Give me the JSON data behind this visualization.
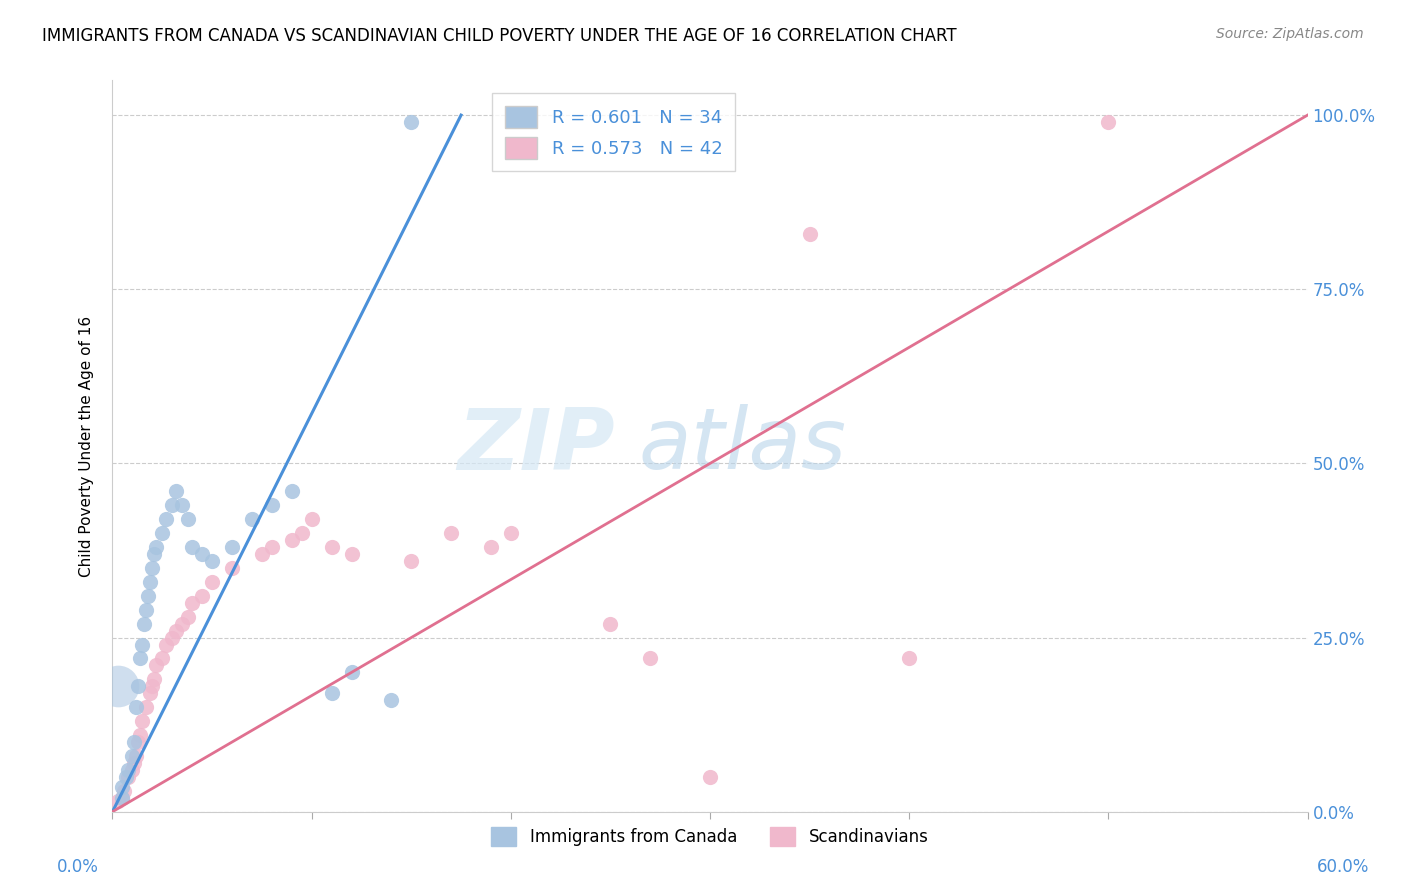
{
  "title": "IMMIGRANTS FROM CANADA VS SCANDINAVIAN CHILD POVERTY UNDER THE AGE OF 16 CORRELATION CHART",
  "source": "Source: ZipAtlas.com",
  "ylabel": "Child Poverty Under the Age of 16",
  "legend_label1": "Immigrants from Canada",
  "legend_label2": "Scandinavians",
  "r1": 0.601,
  "n1": 34,
  "r2": 0.573,
  "n2": 42,
  "color1": "#a8c4e0",
  "color2": "#f0b8cc",
  "line_color1": "#4a90d9",
  "line_color2": "#e07090",
  "watermark_zip": "ZIP",
  "watermark_atlas": "atlas",
  "blue_scatter_x": [
    0.5,
    0.5,
    0.7,
    0.8,
    1.0,
    1.1,
    1.2,
    1.3,
    1.4,
    1.5,
    1.6,
    1.7,
    1.8,
    1.9,
    2.0,
    2.1,
    2.2,
    2.5,
    2.7,
    3.0,
    3.2,
    3.5,
    3.8,
    4.0,
    4.5,
    5.0,
    6.0,
    7.0,
    8.0,
    9.0,
    11.0,
    12.0,
    14.0,
    15.0
  ],
  "blue_scatter_y": [
    2.0,
    3.5,
    5.0,
    6.0,
    8.0,
    10.0,
    15.0,
    18.0,
    22.0,
    24.0,
    27.0,
    29.0,
    31.0,
    33.0,
    35.0,
    37.0,
    38.0,
    40.0,
    42.0,
    44.0,
    46.0,
    44.0,
    42.0,
    38.0,
    37.0,
    36.0,
    38.0,
    42.0,
    44.0,
    46.0,
    17.0,
    20.0,
    16.0,
    99.0
  ],
  "pink_scatter_x": [
    0.3,
    0.5,
    0.6,
    0.8,
    1.0,
    1.1,
    1.2,
    1.3,
    1.4,
    1.5,
    1.7,
    1.9,
    2.0,
    2.1,
    2.2,
    2.5,
    2.7,
    3.0,
    3.2,
    3.5,
    3.8,
    4.0,
    4.5,
    5.0,
    6.0,
    7.5,
    8.0,
    9.0,
    9.5,
    10.0,
    11.0,
    12.0,
    15.0,
    17.0,
    19.0,
    20.0,
    25.0,
    27.0,
    30.0,
    35.0,
    40.0,
    50.0
  ],
  "pink_scatter_y": [
    1.5,
    2.0,
    3.0,
    5.0,
    6.0,
    7.0,
    8.0,
    10.0,
    11.0,
    13.0,
    15.0,
    17.0,
    18.0,
    19.0,
    21.0,
    22.0,
    24.0,
    25.0,
    26.0,
    27.0,
    28.0,
    30.0,
    31.0,
    33.0,
    35.0,
    37.0,
    38.0,
    39.0,
    40.0,
    42.0,
    38.0,
    37.0,
    36.0,
    40.0,
    38.0,
    40.0,
    27.0,
    22.0,
    5.0,
    83.0,
    22.0,
    99.0
  ],
  "blue_line_x": [
    0,
    17.5
  ],
  "blue_line_y": [
    0,
    100
  ],
  "pink_line_x": [
    0,
    60
  ],
  "pink_line_y": [
    0,
    100
  ],
  "big_blue_dot_x": 0.3,
  "big_blue_dot_y": 18.0,
  "xmin": 0,
  "xmax": 60,
  "ymin": 0,
  "ymax": 105,
  "ytick_vals": [
    0,
    25,
    50,
    75,
    100
  ],
  "ytick_labels": [
    "0.0%",
    "25.0%",
    "50.0%",
    "75.0%",
    "100.0%"
  ],
  "xtick_label_left": "0.0%",
  "xtick_label_right": "60.0%"
}
